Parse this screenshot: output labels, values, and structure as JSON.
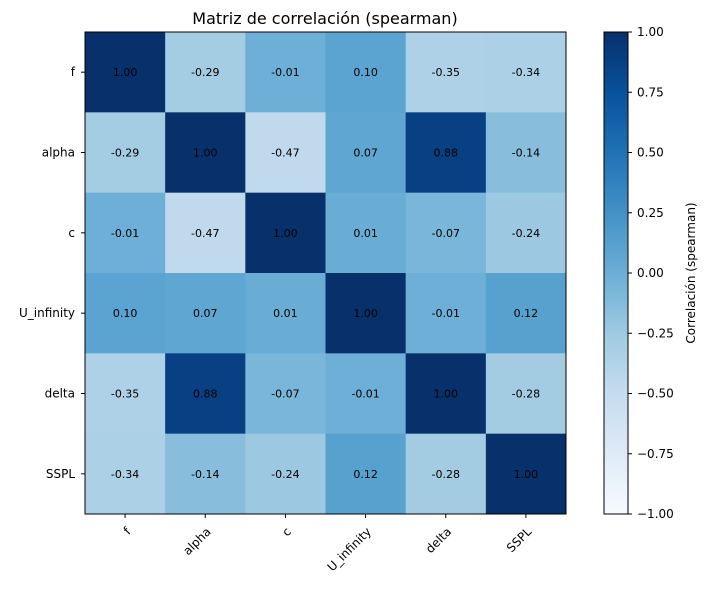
{
  "chart_data": {
    "type": "heatmap",
    "title": "Matriz de correlación (spearman)",
    "row_labels": [
      "f",
      "alpha",
      "c",
      "U_infinity",
      "delta",
      "SSPL"
    ],
    "col_labels": [
      "f",
      "alpha",
      "c",
      "U_infinity",
      "delta",
      "SSPL"
    ],
    "values": [
      [
        1.0,
        -0.29,
        -0.01,
        0.1,
        -0.35,
        -0.34
      ],
      [
        -0.29,
        1.0,
        -0.47,
        0.07,
        0.88,
        -0.14
      ],
      [
        -0.01,
        -0.47,
        1.0,
        0.01,
        -0.07,
        -0.24
      ],
      [
        0.1,
        0.07,
        0.01,
        1.0,
        -0.01,
        0.12
      ],
      [
        -0.35,
        0.88,
        -0.07,
        -0.01,
        1.0,
        -0.28
      ],
      [
        -0.34,
        -0.14,
        -0.24,
        0.12,
        -0.28,
        1.0
      ]
    ],
    "value_labels": [
      [
        "1.00",
        "-0.29",
        "-0.01",
        "0.10",
        "-0.35",
        "-0.34"
      ],
      [
        "-0.29",
        "1.00",
        "-0.47",
        "0.07",
        "0.88",
        "-0.14"
      ],
      [
        "-0.01",
        "-0.47",
        "1.00",
        "0.01",
        "-0.07",
        "-0.24"
      ],
      [
        "0.10",
        "0.07",
        "0.01",
        "1.00",
        "-0.01",
        "0.12"
      ],
      [
        "-0.35",
        "0.88",
        "-0.07",
        "-0.01",
        "1.00",
        "-0.28"
      ],
      [
        "-0.34",
        "-0.14",
        "-0.24",
        "0.12",
        "-0.28",
        "1.00"
      ]
    ],
    "colormap": "Blues",
    "vmin": -1.0,
    "vmax": 1.0,
    "colorbar": {
      "label": "Correlación (spearman)",
      "ticks": [
        1.0,
        0.75,
        0.5,
        0.25,
        0.0,
        -0.25,
        -0.5,
        -0.75,
        -1.0
      ],
      "tick_labels": [
        "1.00",
        "0.75",
        "0.50",
        "0.25",
        "0.00",
        "−0.25",
        "−0.50",
        "−0.75",
        "−1.00"
      ]
    }
  }
}
